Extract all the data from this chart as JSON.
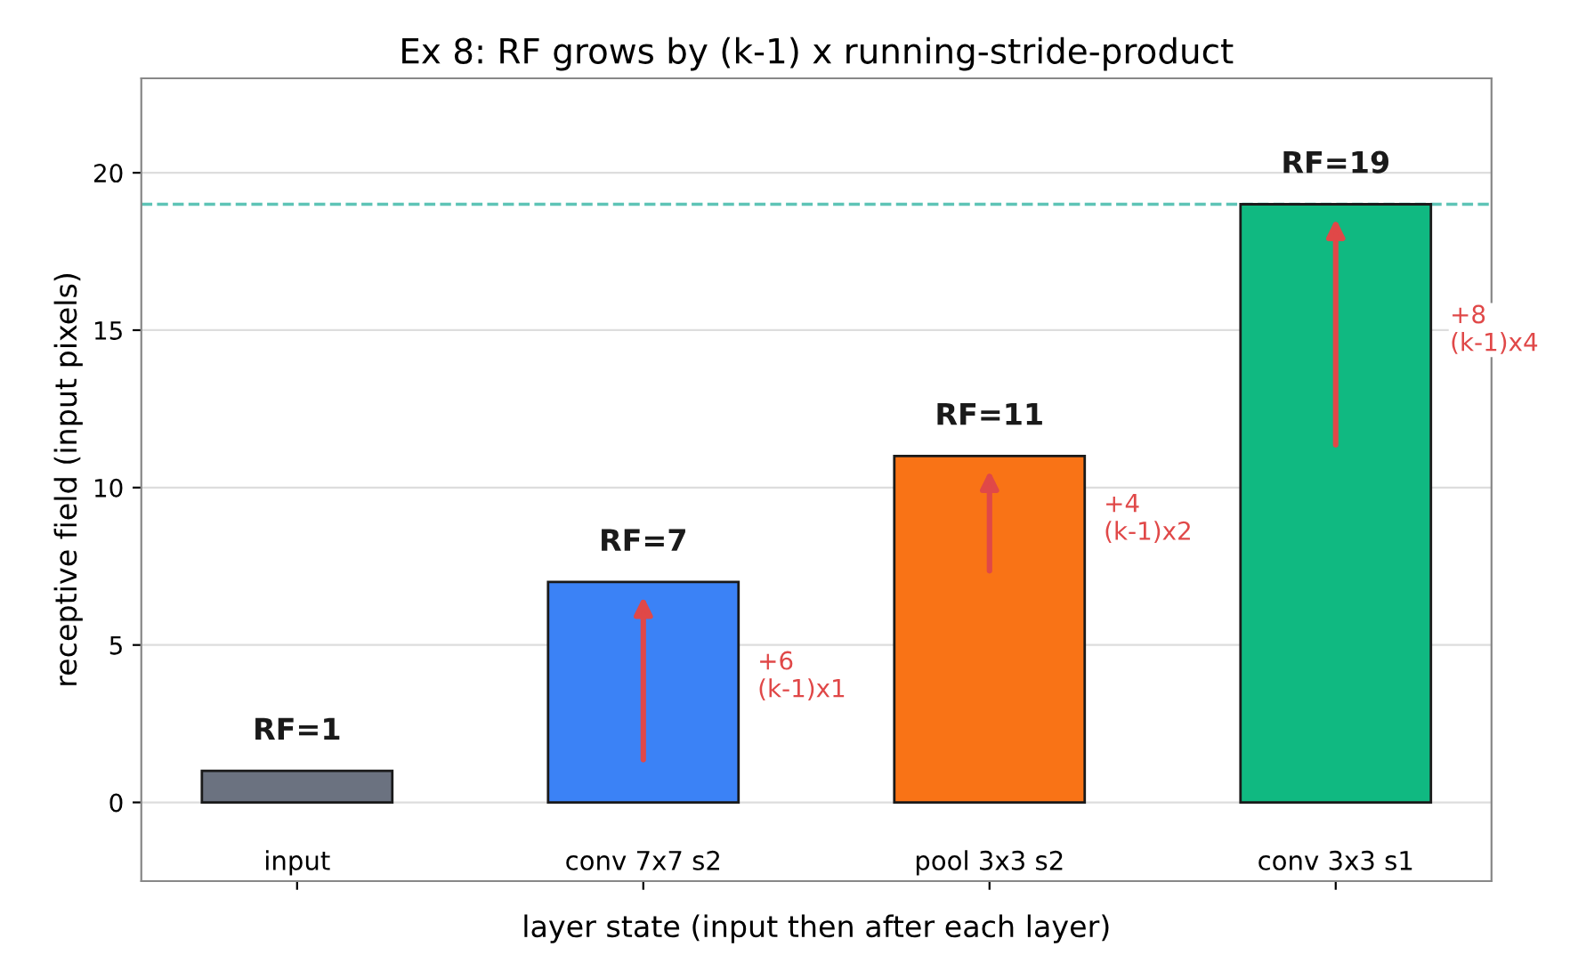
{
  "chart_data": {
    "type": "bar",
    "title": "Ex 8: RF grows by (k-1) x running-stride-product",
    "xlabel": "layer state (input then after each layer)",
    "ylabel": "receptive field (input pixels)",
    "categories": [
      "input",
      "conv 7x7 s2",
      "pool 3x3 s2",
      "conv 3x3 s1"
    ],
    "values": [
      1,
      7,
      11,
      19
    ],
    "colors": [
      "#6b7280",
      "#3b82f6",
      "#f97316",
      "#10b981"
    ],
    "value_labels": [
      "RF=1",
      "RF=7",
      "RF=11",
      "RF=19"
    ],
    "ylim": [
      -2.5,
      23
    ],
    "yticks": [
      0,
      5,
      10,
      15,
      20
    ],
    "grid": "y",
    "ref_lines": [
      {
        "axis": "y",
        "value": 19,
        "color": "#5ec4b6",
        "line_style": "dashed"
      }
    ],
    "annotations": [
      "+6\n(k-1)x1",
      "+4\n(k-1)x2",
      "+8\n(k-1)x4"
    ]
  }
}
